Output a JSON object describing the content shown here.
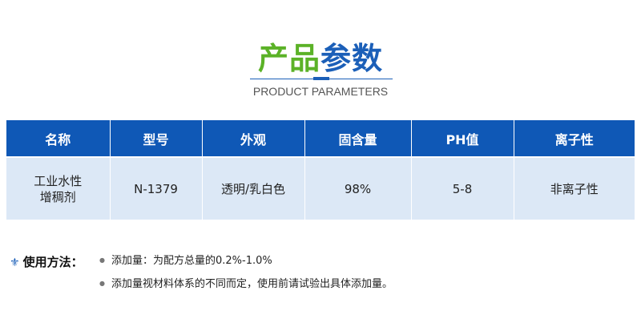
{
  "header": {
    "title_green": "产品",
    "title_blue": "参数",
    "subtitle": "PRODUCT PARAMETERS"
  },
  "table": {
    "headers": [
      "名称",
      "型号",
      "外观",
      "固含量",
      "PH值",
      "离子性"
    ],
    "rows": [
      [
        "工业水性\n增稠剂",
        "N-1379",
        "透明/乳白色",
        "98%",
        "5-8",
        "非离子性"
      ]
    ]
  },
  "usage": {
    "icon": "fleur-de-lis-icon",
    "label": "使用方法：",
    "items": [
      "添加量：为配方总量的0.2%-1.0%",
      "添加量视材料体系的不同而定，使用前请试验出具体添加量。"
    ]
  },
  "colors": {
    "header_bg": "#0f58b6",
    "row_bg": "#dce8f6",
    "green": "#5bb227",
    "blue": "#1b5fb8"
  }
}
